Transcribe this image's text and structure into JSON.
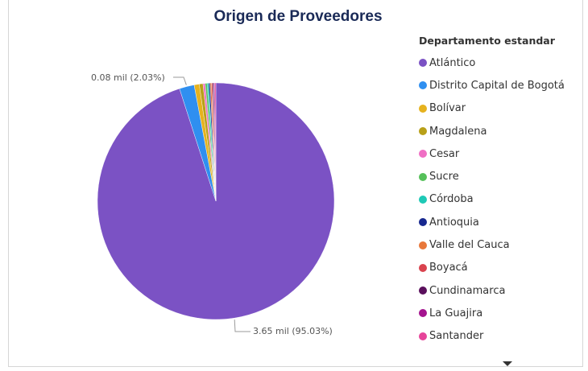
{
  "chart_data": {
    "type": "pie",
    "title": "Origen de Proveedores",
    "legend_title": "Departamento estandar",
    "legend_position": "right",
    "slices": [
      {
        "name": "Atlántico",
        "value": 3.65,
        "percent": 95.03,
        "color": "#7b52c4"
      },
      {
        "name": "Distrito Capital de Bogotá",
        "value": 0.08,
        "percent": 2.03,
        "color": "#2f8ff0"
      },
      {
        "name": "Bolívar",
        "value": 0.03,
        "percent": 0.7,
        "color": "#e6b21e"
      },
      {
        "name": "Magdalena",
        "value": 0.02,
        "percent": 0.5,
        "color": "#b8a018"
      },
      {
        "name": "Cesar",
        "value": 0.01,
        "percent": 0.3,
        "color": "#ef6fc4"
      },
      {
        "name": "Sucre",
        "value": 0.01,
        "percent": 0.25,
        "color": "#56c05a"
      },
      {
        "name": "Córdoba",
        "value": 0.01,
        "percent": 0.22,
        "color": "#1ec9b6"
      },
      {
        "name": "Antioquia",
        "value": 0.01,
        "percent": 0.2,
        "color": "#17288f"
      },
      {
        "name": "Valle del Cauca",
        "value": 0.01,
        "percent": 0.18,
        "color": "#e8773a"
      },
      {
        "name": "Boyacá",
        "value": 0.01,
        "percent": 0.16,
        "color": "#d9434e"
      },
      {
        "name": "Cundinamarca",
        "value": 0.01,
        "percent": 0.14,
        "color": "#5a0f5c"
      },
      {
        "name": "La Guajira",
        "value": 0.01,
        "percent": 0.14,
        "color": "#a4148f"
      },
      {
        "name": "Santander",
        "value": 0.01,
        "percent": 0.15,
        "color": "#e6449a"
      }
    ],
    "data_labels": [
      {
        "slice": "Distrito Capital de Bogotá",
        "text": "0.08 mil (2.03%)"
      },
      {
        "slice": "Atlántico",
        "text": "3.65 mil (95.03%)"
      }
    ]
  }
}
